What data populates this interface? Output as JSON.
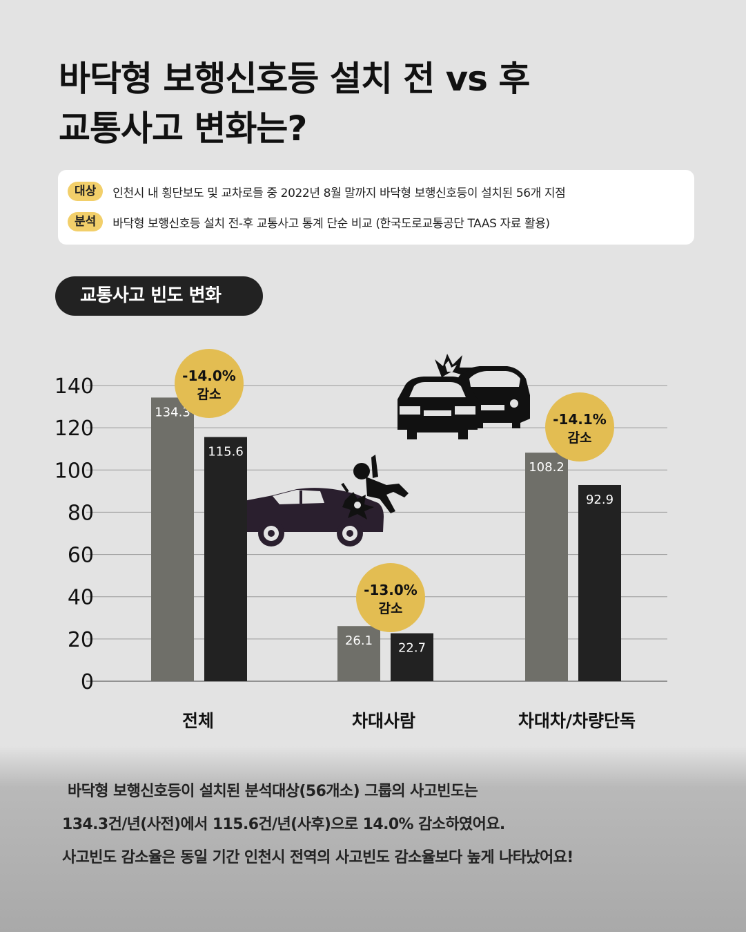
{
  "title": {
    "line1": "바닥형 보행신호등 설치 전 vs 후",
    "line2": "교통사고 변화는?"
  },
  "info": {
    "target_label": "대상",
    "target_text": "인천시 내 횡단보도 및 교차로들 중 2022년 8월 말까지 바닥형 보행신호등이 설치된 56개 지점",
    "analysis_label": "분석",
    "analysis_text": "바닥형 보행신호등 설치 전-후 교통사고 통계 단순 비교 (한국도로교통공단 TAAS 자료 활용)"
  },
  "section_label": "교통사고 빈도 변화",
  "chart_data": {
    "type": "bar",
    "categories": [
      "전체",
      "차대사람",
      "차대차/차량단독"
    ],
    "series": [
      {
        "values": [
          134.3,
          26.1,
          108.2
        ],
        "color": "#6f6f69"
      },
      {
        "values": [
          115.6,
          22.7,
          92.9
        ],
        "color": "#222222"
      }
    ],
    "data_labels": [
      [
        "134.3",
        "26.1",
        "108.2"
      ],
      [
        "115.6",
        "22.7",
        "92.9"
      ]
    ],
    "yticks": [
      0,
      20,
      40,
      60,
      80,
      100,
      120,
      140
    ],
    "ylim": [
      0,
      140
    ],
    "grid": true,
    "badges": [
      {
        "line1": "-14.0%",
        "line2": "감소"
      },
      {
        "line1": "-13.0%",
        "line2": "감소"
      },
      {
        "line1": "-14.1%",
        "line2": "감소"
      }
    ],
    "badge_color": "#e3bd52"
  },
  "icons": [
    "car-pedestrian-accident-icon",
    "car-collision-icon"
  ],
  "footer": {
    "line1": "바닥형 보행신호등이 설치된 분석대상(56개소) 그룹의 사고빈도는",
    "line2": "134.3건/년(사전)에서 115.6건/년(사후)으로 14.0% 감소하였어요.",
    "line3": "사고빈도 감소율은 동일 기간 인천시 전역의 사고빈도 감소율보다 높게 나타났어요!"
  }
}
